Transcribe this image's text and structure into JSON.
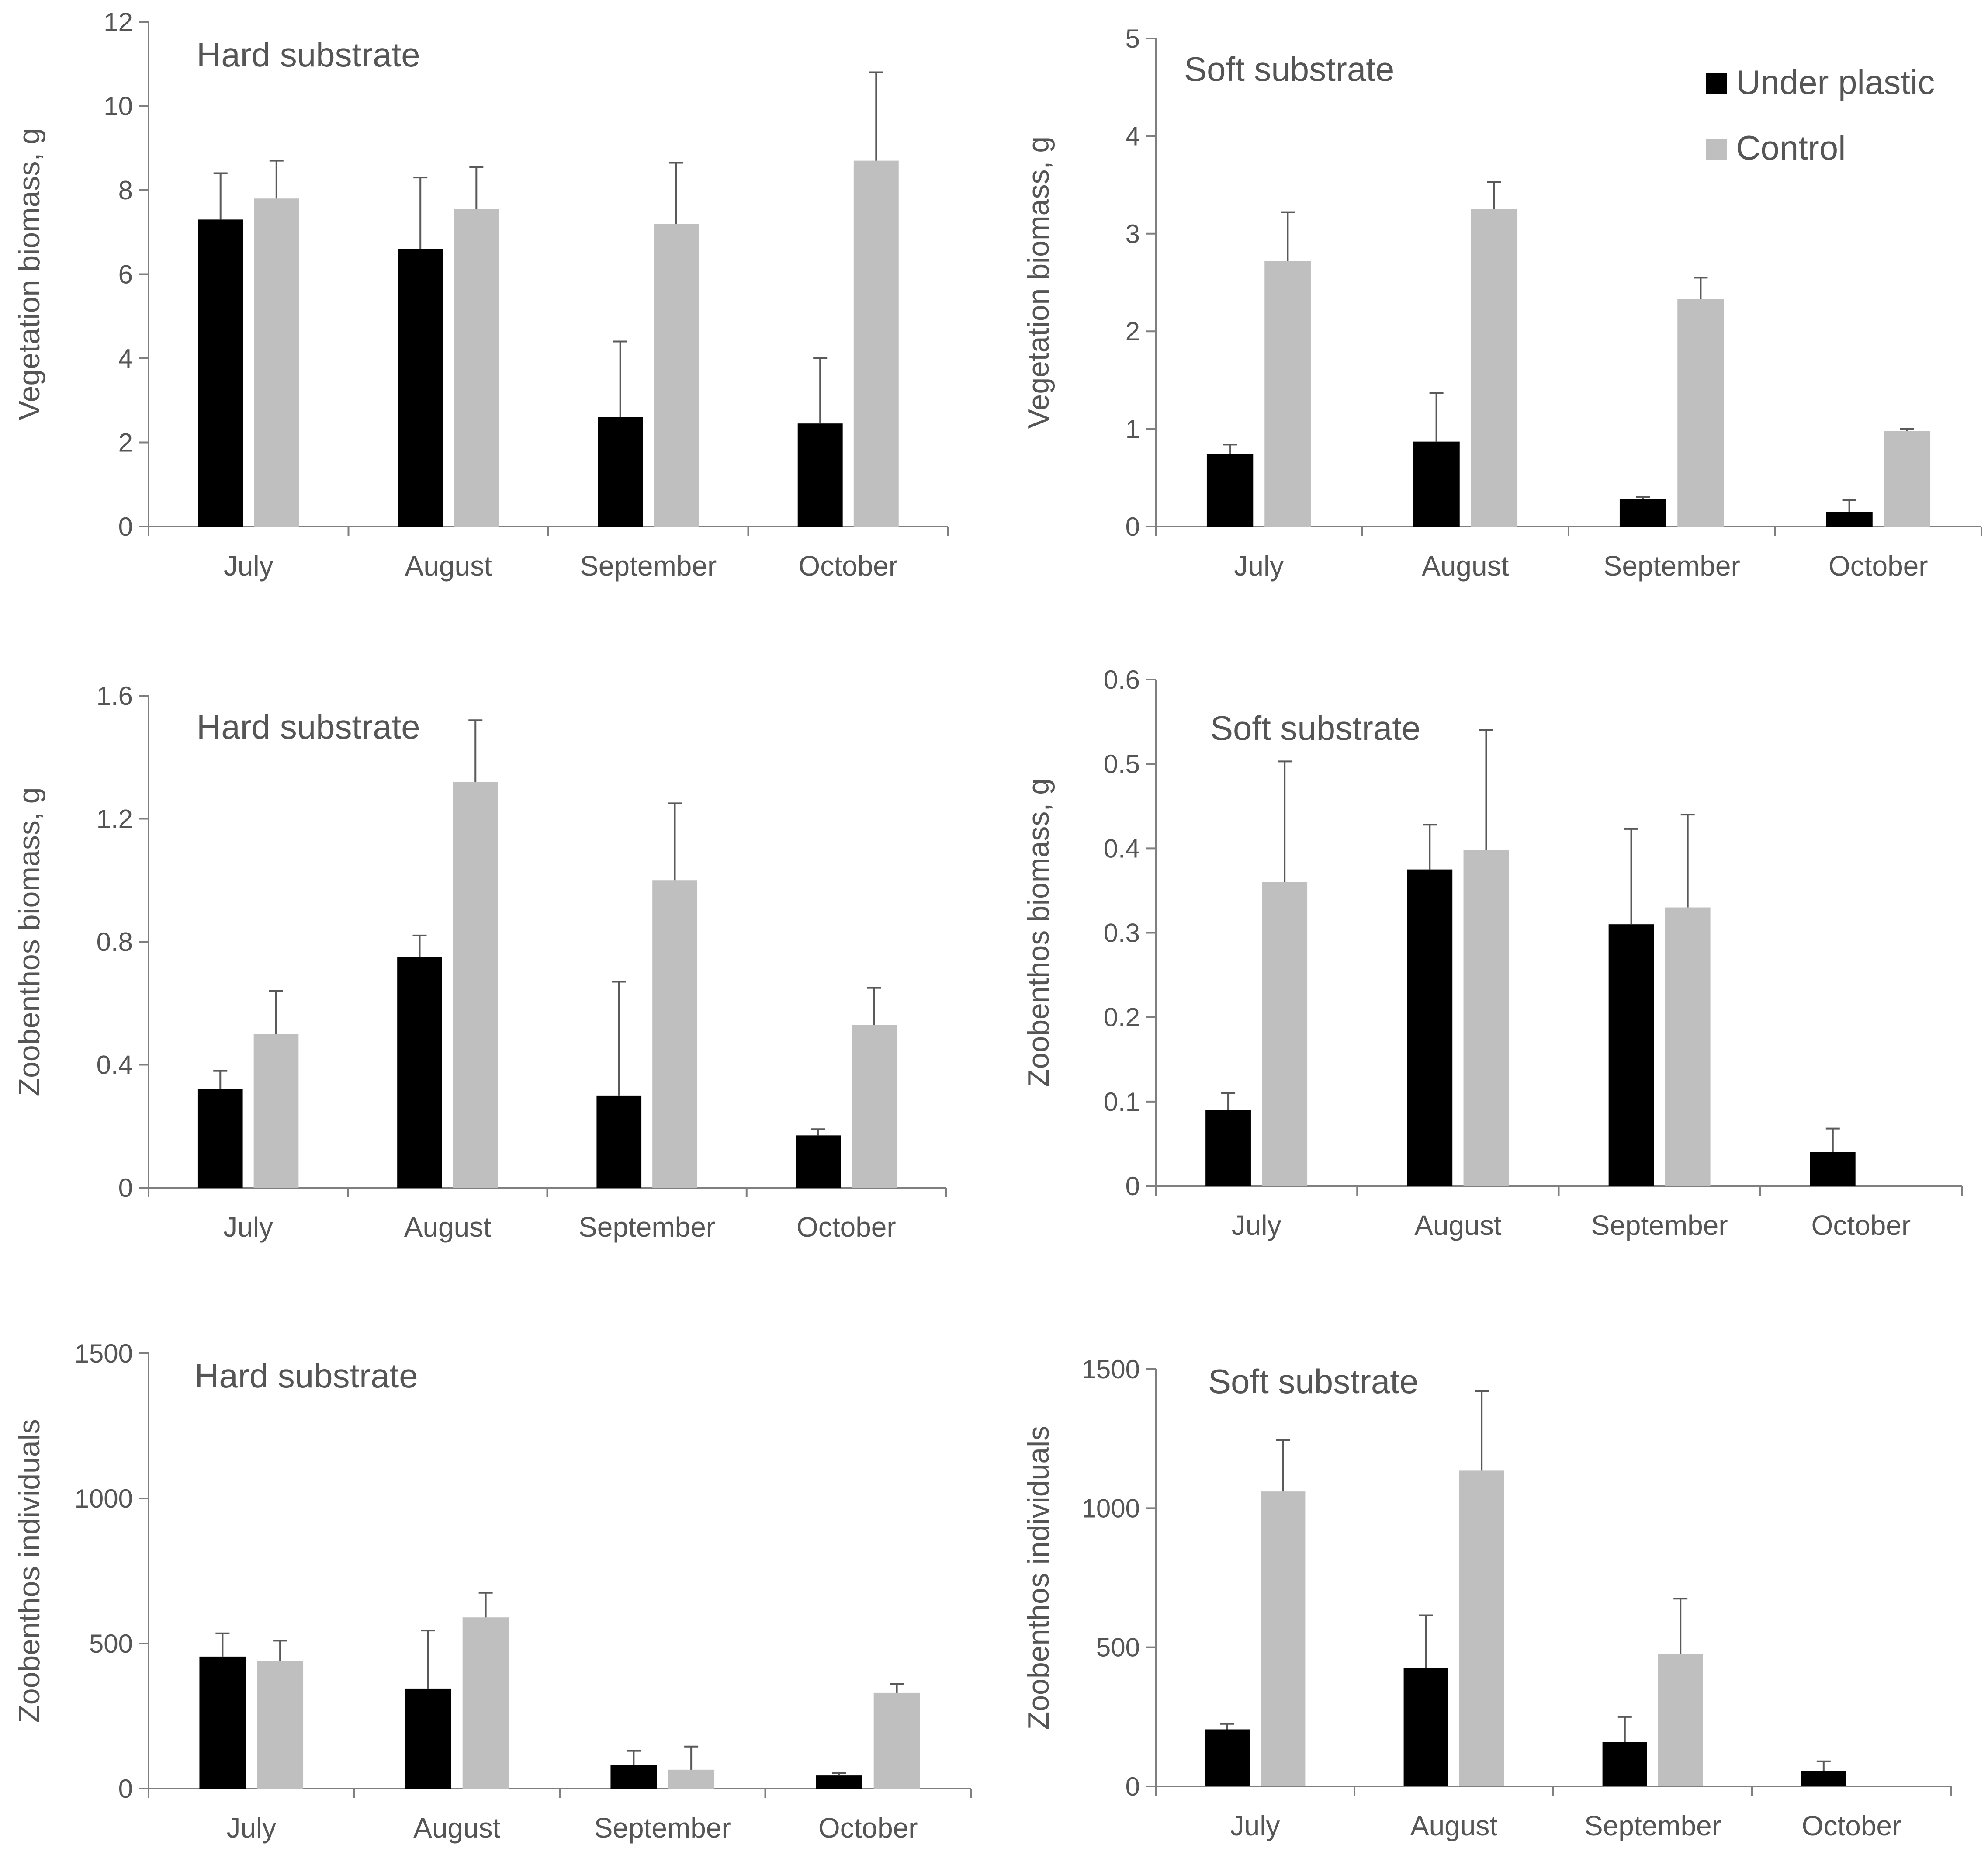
{
  "colors": {
    "under_plastic": "#000000",
    "control": "#bfbfbf"
  },
  "legend": [
    {
      "name": "Under plastic",
      "color_key": "under_plastic"
    },
    {
      "name": "Control",
      "color_key": "control"
    }
  ],
  "chart_data": [
    {
      "type": "bar",
      "title": "Hard substrate",
      "ylabel": "Vegetation biomass, g",
      "xlabel": "",
      "ylim": [
        0,
        12
      ],
      "yticks": [
        0,
        2,
        4,
        6,
        8,
        10,
        12
      ],
      "categories": [
        "July",
        "August",
        "September",
        "October"
      ],
      "series": [
        {
          "name": "Under plastic",
          "values": [
            7.3,
            6.6,
            2.6,
            2.45
          ],
          "errors": [
            1.1,
            1.7,
            1.8,
            1.55
          ]
        },
        {
          "name": "Control",
          "values": [
            7.8,
            7.55,
            7.2,
            8.7
          ],
          "errors": [
            0.9,
            1.0,
            1.45,
            2.1
          ]
        }
      ]
    },
    {
      "type": "bar",
      "title": "Soft substrate",
      "ylabel": "Vegetation biomass, g",
      "xlabel": "",
      "ylim": [
        0,
        5
      ],
      "yticks": [
        0,
        1,
        2,
        3,
        4,
        5
      ],
      "categories": [
        "July",
        "August",
        "September",
        "October"
      ],
      "series": [
        {
          "name": "Under plastic",
          "values": [
            0.74,
            0.87,
            0.28,
            0.15
          ],
          "errors": [
            0.1,
            0.5,
            0.02,
            0.12
          ]
        },
        {
          "name": "Control",
          "values": [
            2.72,
            3.25,
            2.33,
            0.98
          ],
          "errors": [
            0.5,
            0.28,
            0.22,
            0.02
          ]
        }
      ]
    },
    {
      "type": "bar",
      "title": "Hard substrate",
      "ylabel": "Zoobenthos biomass, g",
      "xlabel": "",
      "ylim": [
        0,
        1.6
      ],
      "yticks": [
        0,
        0.4,
        0.8,
        1.2,
        1.6
      ],
      "categories": [
        "July",
        "August",
        "September",
        "October"
      ],
      "series": [
        {
          "name": "Under plastic",
          "values": [
            0.32,
            0.75,
            0.3,
            0.17
          ],
          "errors": [
            0.06,
            0.07,
            0.37,
            0.02
          ]
        },
        {
          "name": "Control",
          "values": [
            0.5,
            1.32,
            1.0,
            0.53
          ],
          "errors": [
            0.14,
            0.2,
            0.25,
            0.12
          ]
        }
      ]
    },
    {
      "type": "bar",
      "title": "Soft substrate",
      "ylabel": "Zoobenthos biomass, g",
      "xlabel": "",
      "ylim": [
        0,
        0.6
      ],
      "yticks": [
        0,
        0.1,
        0.2,
        0.3,
        0.4,
        0.5,
        0.6
      ],
      "categories": [
        "July",
        "August",
        "September",
        "October"
      ],
      "series": [
        {
          "name": "Under plastic",
          "values": [
            0.09,
            0.375,
            0.31,
            0.04
          ],
          "errors": [
            0.02,
            0.053,
            0.113,
            0.028
          ]
        },
        {
          "name": "Control",
          "values": [
            0.36,
            0.398,
            0.33,
            0.0
          ],
          "errors": [
            0.143,
            0.142,
            0.11,
            0.0
          ]
        }
      ]
    },
    {
      "type": "bar",
      "title": "Hard substrate",
      "ylabel": "Zoobenthos individuals",
      "xlabel": "",
      "ylim": [
        0,
        1500
      ],
      "yticks": [
        0,
        500,
        1000,
        1500
      ],
      "categories": [
        "July",
        "August",
        "September",
        "October"
      ],
      "series": [
        {
          "name": "Under plastic",
          "values": [
            455,
            345,
            80,
            45
          ],
          "errors": [
            80,
            200,
            50,
            8
          ]
        },
        {
          "name": "Control",
          "values": [
            440,
            590,
            65,
            330
          ],
          "errors": [
            70,
            85,
            80,
            30
          ]
        }
      ]
    },
    {
      "type": "bar",
      "title": "Soft substrate",
      "ylabel": "Zoobenthos individuals",
      "xlabel": "",
      "ylim": [
        0,
        1500
      ],
      "yticks": [
        0,
        500,
        1000,
        1500
      ],
      "categories": [
        "July",
        "August",
        "September",
        "October"
      ],
      "series": [
        {
          "name": "Under plastic",
          "values": [
            205,
            425,
            160,
            55
          ],
          "errors": [
            20,
            190,
            90,
            35
          ]
        },
        {
          "name": "Control",
          "values": [
            1060,
            1135,
            475,
            0
          ],
          "errors": [
            185,
            285,
            200,
            0
          ]
        }
      ]
    }
  ]
}
